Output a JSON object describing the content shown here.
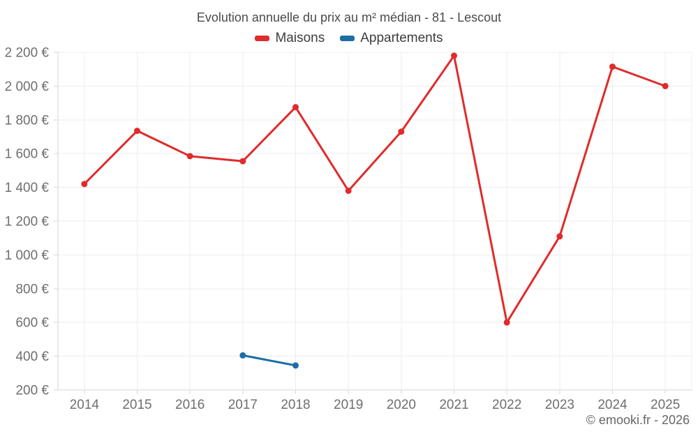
{
  "chart_data": {
    "type": "line",
    "title": "Evolution annuelle du prix au m² médian - 81 - Lescout",
    "categories": [
      "2014",
      "2015",
      "2016",
      "2017",
      "2018",
      "2019",
      "2020",
      "2021",
      "2022",
      "2023",
      "2024",
      "2025"
    ],
    "series": [
      {
        "name": "Maisons",
        "color": "#e02b2b",
        "values": [
          1420,
          1735,
          1585,
          1555,
          1875,
          1380,
          1730,
          2180,
          600,
          1110,
          2115,
          2000
        ]
      },
      {
        "name": "Appartements",
        "color": "#1c6ea4",
        "values": [
          null,
          null,
          null,
          405,
          345,
          null,
          null,
          null,
          null,
          null,
          null,
          null
        ]
      }
    ],
    "ylim": [
      200,
      2200
    ],
    "ytick_step": 200,
    "yticklabels": [
      "200 €",
      "400 €",
      "600 €",
      "800 €",
      "1 000 €",
      "1 200 €",
      "1 400 €",
      "1 600 €",
      "1 800 €",
      "2 000 €",
      "2 200 €"
    ],
    "grid": true,
    "legend_position": "top"
  },
  "style": {
    "grid_color": "#ededed",
    "axis_color": "#d6d6d6",
    "tick_label_color": "#6f6f6f"
  },
  "footer": {
    "copyright": "© emooki.fr - 2026"
  }
}
